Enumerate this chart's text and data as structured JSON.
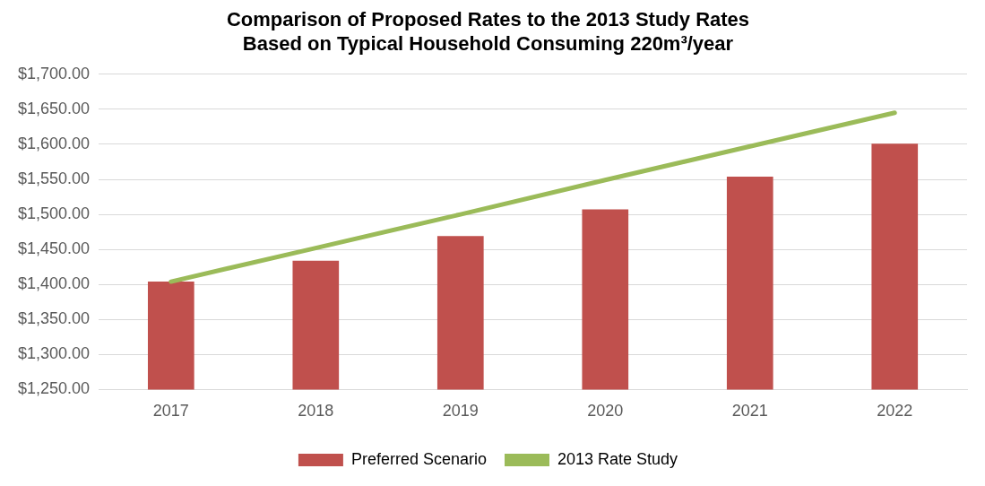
{
  "chart_data": {
    "type": "bar",
    "title": "Comparison of Proposed Rates to the 2013 Study Rates\nBased on Typical Household Consuming 220m³/year",
    "categories": [
      "2017",
      "2018",
      "2019",
      "2020",
      "2021",
      "2022"
    ],
    "series": [
      {
        "name": "Preferred Scenario",
        "color": "#c0504d",
        "values": [
          1404,
          1434,
          1469,
          1507,
          1554,
          1601
        ]
      },
      {
        "name": "2013 Rate Study",
        "type": "line",
        "color": "#9bbb59",
        "values": [
          1404,
          1452,
          1500,
          1549,
          1597,
          1645
        ]
      }
    ],
    "ylim": [
      1250,
      1700
    ],
    "yticks": [
      {
        "value": 1250,
        "label": "$1,250.00"
      },
      {
        "value": 1300,
        "label": "$1,300.00"
      },
      {
        "value": 1350,
        "label": "$1,350.00"
      },
      {
        "value": 1400,
        "label": "$1,400.00"
      },
      {
        "value": 1450,
        "label": "$1,450.00"
      },
      {
        "value": 1500,
        "label": "$1,500.00"
      },
      {
        "value": 1550,
        "label": "$1,550.00"
      },
      {
        "value": 1600,
        "label": "$1,600.00"
      },
      {
        "value": 1650,
        "label": "$1,650.00"
      },
      {
        "value": 1700,
        "label": "$1,700.00"
      }
    ],
    "grid": "y",
    "legend": "bottom",
    "marker": "none"
  }
}
